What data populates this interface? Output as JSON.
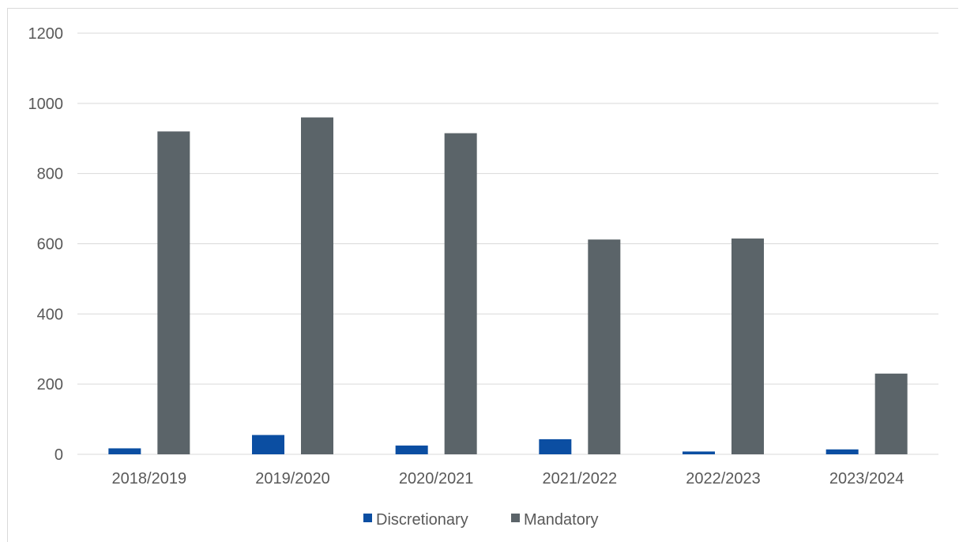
{
  "chart_data": {
    "type": "bar",
    "categories": [
      "2018/2019",
      "2019/2020",
      "2020/2021",
      "2021/2022",
      "2022/2023",
      "2023/2024"
    ],
    "series": [
      {
        "name": "Discretionary",
        "values": [
          17,
          55,
          25,
          43,
          8,
          14
        ],
        "color": "#0b4ea2"
      },
      {
        "name": "Mandatory",
        "values": [
          920,
          960,
          915,
          612,
          615,
          230
        ],
        "color": "#5b6469"
      }
    ],
    "yticks": [
      0,
      200,
      400,
      600,
      800,
      1000,
      1200
    ],
    "ylim": [
      0,
      1200
    ],
    "grid": true,
    "legend_position": "bottom",
    "gridline_color": "#d9d9d9"
  }
}
